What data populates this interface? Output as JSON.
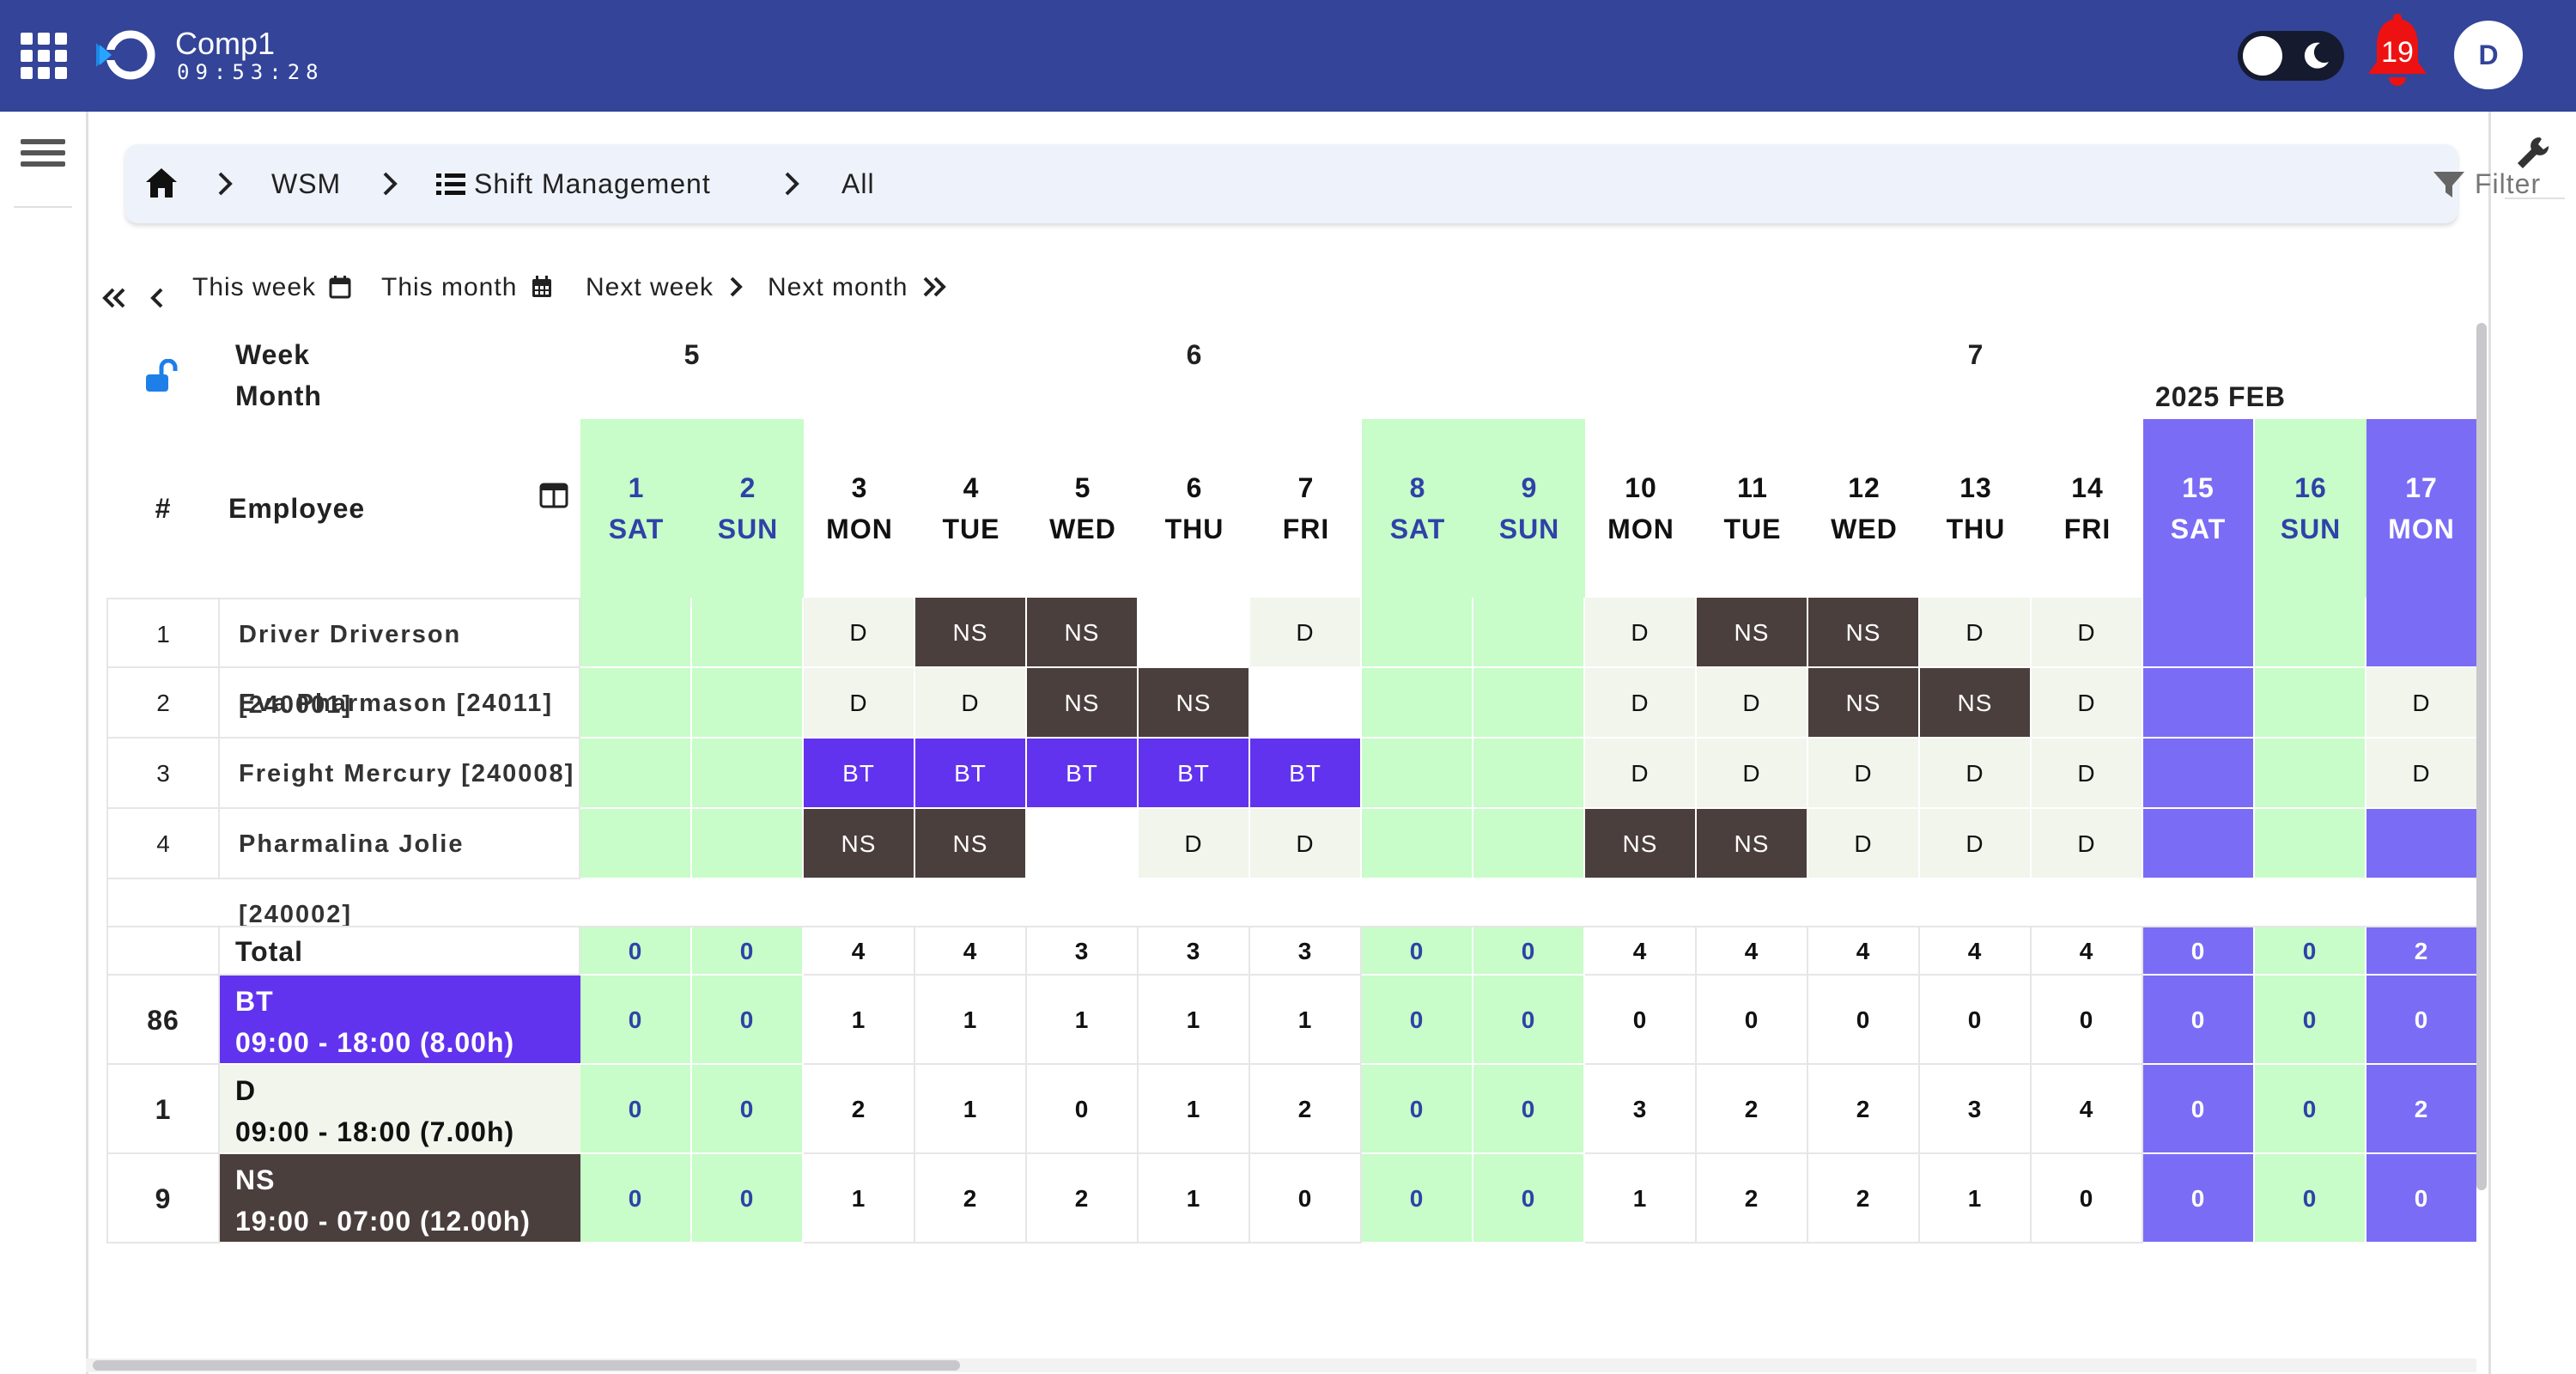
{
  "header": {
    "app_name": "Comp1",
    "clock": "09:53:28",
    "notification_count": "19",
    "avatar_initial": "D",
    "color": "#334499"
  },
  "breadcrumb": {
    "items": [
      "WSM",
      "Shift Management",
      "All"
    ],
    "filter_label": "Filter"
  },
  "week_nav": {
    "this_week": "This week",
    "this_month": "This month",
    "next_week": "Next week",
    "next_month": "Next month"
  },
  "schedule": {
    "labels": {
      "week": "Week",
      "month": "Month",
      "hash": "#",
      "employee": "Employee",
      "total": "Total",
      "month_label": "2025 FEB"
    },
    "weeks": [
      "5",
      "6",
      "7"
    ],
    "days": [
      {
        "num": "1",
        "name": "SAT",
        "type": "we"
      },
      {
        "num": "2",
        "name": "SUN",
        "type": "we"
      },
      {
        "num": "3",
        "name": "MON",
        "type": "wd"
      },
      {
        "num": "4",
        "name": "TUE",
        "type": "wd"
      },
      {
        "num": "5",
        "name": "WED",
        "type": "wd"
      },
      {
        "num": "6",
        "name": "THU",
        "type": "wd"
      },
      {
        "num": "7",
        "name": "FRI",
        "type": "wd"
      },
      {
        "num": "8",
        "name": "SAT",
        "type": "we"
      },
      {
        "num": "9",
        "name": "SUN",
        "type": "we"
      },
      {
        "num": "10",
        "name": "MON",
        "type": "wd"
      },
      {
        "num": "11",
        "name": "TUE",
        "type": "wd"
      },
      {
        "num": "12",
        "name": "WED",
        "type": "wd"
      },
      {
        "num": "13",
        "name": "THU",
        "type": "wd"
      },
      {
        "num": "14",
        "name": "FRI",
        "type": "wd"
      },
      {
        "num": "15",
        "name": "SAT",
        "type": "hol"
      },
      {
        "num": "16",
        "name": "SUN",
        "type": "we"
      },
      {
        "num": "17",
        "name": "MON",
        "type": "hol"
      }
    ],
    "employees": [
      {
        "index": "1",
        "name": "Driver Driverson [240001]",
        "shifts": [
          "",
          "",
          "D",
          "NS",
          "NS",
          "",
          "D",
          "",
          "",
          "D",
          "NS",
          "NS",
          "D",
          "D",
          "",
          "",
          ""
        ]
      },
      {
        "index": "2",
        "name": "Eva Pharmason [24011]",
        "shifts": [
          "",
          "",
          "D",
          "D",
          "NS",
          "NS",
          "",
          "",
          "",
          "D",
          "D",
          "NS",
          "NS",
          "D",
          "",
          "",
          "D"
        ]
      },
      {
        "index": "3",
        "name": "Freight Mercury [240008]",
        "shifts": [
          "",
          "",
          "BT",
          "BT",
          "BT",
          "BT",
          "BT",
          "",
          "",
          "D",
          "D",
          "D",
          "D",
          "D",
          "",
          "",
          "D"
        ]
      },
      {
        "index": "4",
        "name": "Pharmalina Jolie [240002]",
        "shifts": [
          "",
          "",
          "NS",
          "NS",
          "",
          "D",
          "D",
          "",
          "",
          "NS",
          "NS",
          "D",
          "D",
          "D",
          "",
          "",
          ""
        ]
      }
    ],
    "totals": [
      "0",
      "0",
      "4",
      "4",
      "3",
      "3",
      "3",
      "0",
      "0",
      "4",
      "4",
      "4",
      "4",
      "4",
      "0",
      "0",
      "2"
    ],
    "shift_types": [
      {
        "count": "86",
        "code": "BT",
        "time": "09:00 - 18:00 (8.00h)",
        "color": "#6233ee",
        "text_color": "#ffffff",
        "values": [
          "0",
          "0",
          "1",
          "1",
          "1",
          "1",
          "1",
          "0",
          "0",
          "0",
          "0",
          "0",
          "0",
          "0",
          "0",
          "0",
          "0"
        ]
      },
      {
        "count": "1",
        "code": "D",
        "time": "09:00 - 18:00 (7.00h)",
        "color": "#f1f5ec",
        "text_color": "#111111",
        "values": [
          "0",
          "0",
          "2",
          "1",
          "0",
          "1",
          "2",
          "0",
          "0",
          "3",
          "2",
          "2",
          "3",
          "4",
          "0",
          "0",
          "2"
        ]
      },
      {
        "count": "9",
        "code": "NS",
        "time": "19:00 - 07:00 (12.00h)",
        "color": "#4a3f3c",
        "text_color": "#ffffff",
        "values": [
          "0",
          "0",
          "1",
          "2",
          "2",
          "1",
          "0",
          "0",
          "0",
          "1",
          "2",
          "2",
          "1",
          "0",
          "0",
          "0",
          "0"
        ]
      }
    ],
    "colors": {
      "weekend": "#c8fcc8",
      "holiday": "#7b6cf6",
      "weekend_text": "#2f42a8",
      "holiday_text": "#ffffff"
    }
  }
}
